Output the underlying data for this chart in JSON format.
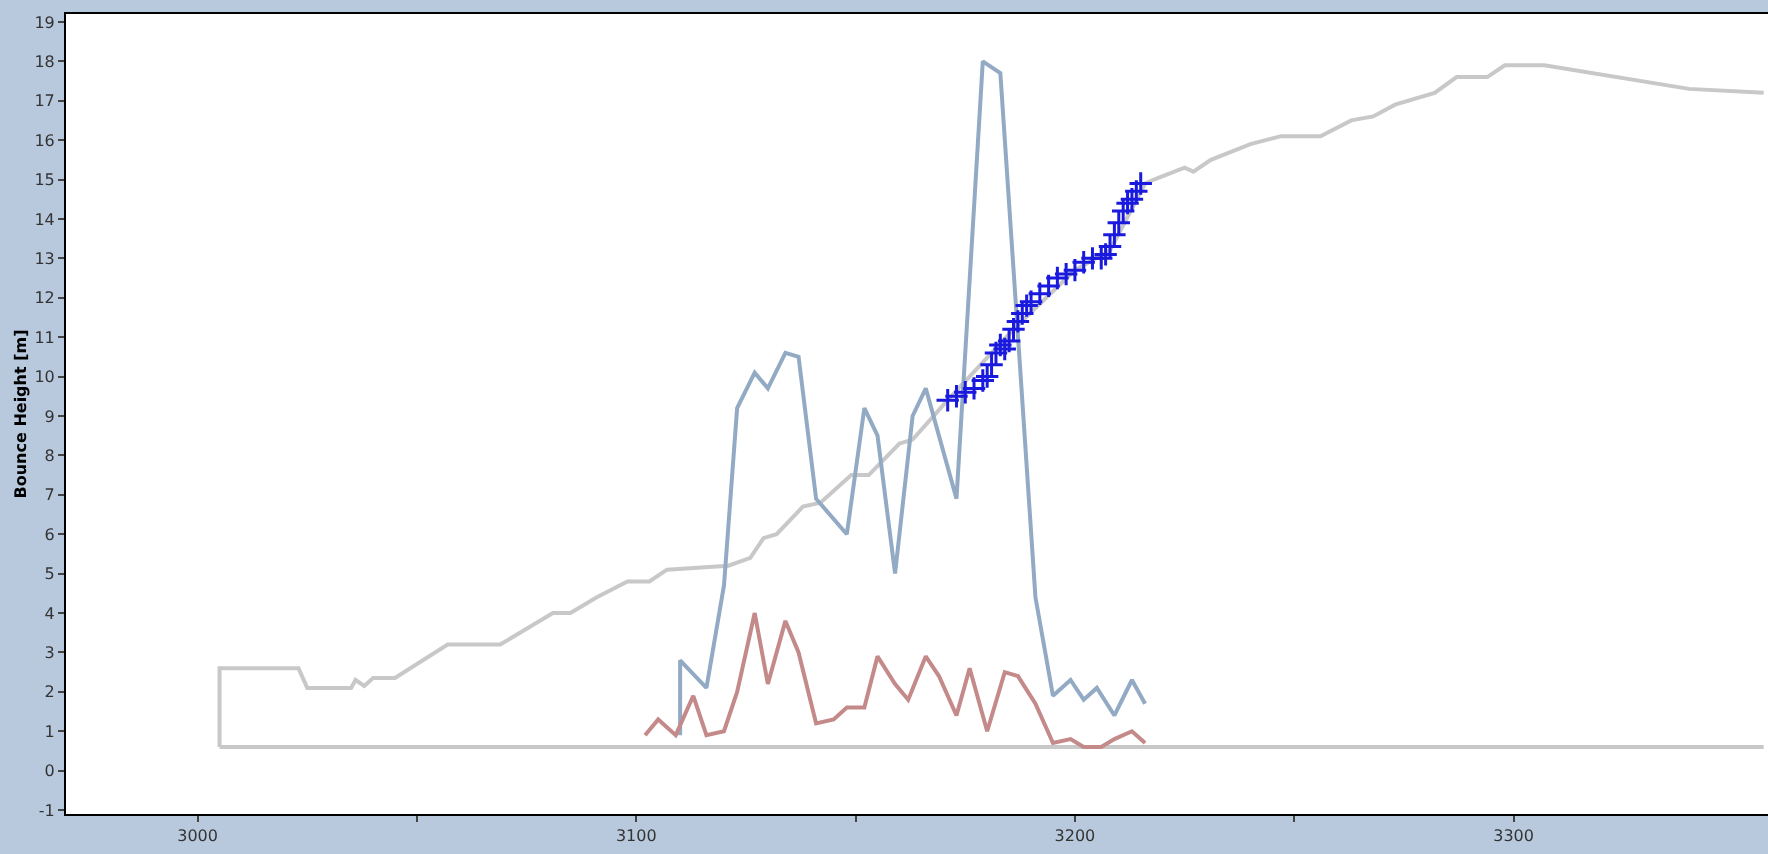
{
  "chart_data": {
    "type": "line",
    "ylabel": "Bounce Height [m]",
    "xlim": [
      2970,
      3358
    ],
    "ylim": [
      -1.1,
      19.2
    ],
    "xticks": [
      3000,
      {
        "value": 3050,
        "label": null
      },
      3100,
      {
        "value": 3150,
        "label": null
      },
      3200,
      {
        "value": 3250,
        "label": null
      },
      3300
    ],
    "yticks": [
      -1,
      0,
      1,
      2,
      3,
      4,
      5,
      6,
      7,
      8,
      9,
      10,
      11,
      12,
      13,
      14,
      15,
      16,
      17,
      18,
      19
    ],
    "series": [
      {
        "color": "#c8c8c8",
        "x": [
          3005,
          3005,
          3023,
          3025,
          3035,
          3036,
          3038,
          3040,
          3045,
          3057,
          3069,
          3081,
          3085,
          3091,
          3098,
          3103,
          3107,
          3121,
          3126,
          3129,
          3132,
          3138,
          3142,
          3149,
          3153,
          3160,
          3163,
          3171,
          3186,
          3200,
          3208,
          3216,
          3218,
          3225,
          3227,
          3231,
          3240,
          3247,
          3256,
          3263,
          3268,
          3273,
          3282,
          3287,
          3294,
          3298,
          3307,
          3340,
          3357
        ],
        "values": [
          0.6,
          2.6,
          2.6,
          2.1,
          2.1,
          2.3,
          2.15,
          2.35,
          2.35,
          3.2,
          3.2,
          4.0,
          4.0,
          4.4,
          4.8,
          4.8,
          5.1,
          5.2,
          5.4,
          5.9,
          6.0,
          6.7,
          6.8,
          7.5,
          7.5,
          8.3,
          8.4,
          9.4,
          11.2,
          12.7,
          13.2,
          14.9,
          15.0,
          15.3,
          15.2,
          15.5,
          15.9,
          16.1,
          16.1,
          16.5,
          16.6,
          16.9,
          17.2,
          17.6,
          17.6,
          17.9,
          17.9,
          17.3,
          17.2
        ]
      },
      {
        "color": "#c8c8c8",
        "x": [
          3005,
          3357
        ],
        "values": [
          0.6,
          0.6
        ]
      },
      {
        "color": "#92aac4",
        "x": [
          3110,
          3110,
          3116,
          3120,
          3123,
          3127,
          3130,
          3134,
          3137,
          3141,
          3148,
          3152,
          3155,
          3159,
          3163,
          3166,
          3173,
          3179,
          3183,
          3188,
          3191,
          3195,
          3199,
          3202,
          3205,
          3209,
          3213,
          3216
        ],
        "values": [
          0.9,
          2.8,
          2.1,
          4.7,
          9.2,
          10.1,
          9.7,
          10.6,
          10.5,
          6.9,
          6.0,
          9.2,
          8.5,
          5.0,
          9.0,
          9.7,
          6.9,
          18.0,
          17.7,
          9.4,
          4.4,
          1.9,
          2.3,
          1.8,
          2.1,
          1.4,
          2.3,
          1.7
        ]
      },
      {
        "color": "#c48a8a",
        "x": [
          3102,
          3105,
          3109,
          3113,
          3116,
          3120,
          3123,
          3127,
          3130,
          3134,
          3137,
          3141,
          3145,
          3148,
          3152,
          3155,
          3159,
          3162,
          3166,
          3169,
          3173,
          3176,
          3180,
          3184,
          3187,
          3191,
          3195,
          3199,
          3202,
          3206,
          3209,
          3213,
          3216
        ],
        "values": [
          0.9,
          1.3,
          0.9,
          1.9,
          0.9,
          1.0,
          2.0,
          4.0,
          2.2,
          3.8,
          3.0,
          1.2,
          1.3,
          1.6,
          1.6,
          2.9,
          2.2,
          1.8,
          2.9,
          2.4,
          1.4,
          2.6,
          1.0,
          2.5,
          2.4,
          1.7,
          0.7,
          0.8,
          0.6,
          0.6,
          0.8,
          1.0,
          0.7
        ]
      },
      {
        "type": "scatter",
        "color": "#1a1adf",
        "marker": "cross",
        "x": [
          3171,
          3173,
          3175,
          3177,
          3179,
          3180,
          3181,
          3182,
          3183,
          3184,
          3185,
          3186,
          3187,
          3188,
          3189,
          3190,
          3192,
          3194,
          3196,
          3198,
          3200,
          3202,
          3204,
          3206,
          3207,
          3208,
          3209,
          3210,
          3211,
          3212,
          3213,
          3214,
          3215
        ],
        "values": [
          9.4,
          9.5,
          9.6,
          9.7,
          9.9,
          10.0,
          10.3,
          10.6,
          10.8,
          10.7,
          10.9,
          11.2,
          11.4,
          11.6,
          11.8,
          11.9,
          12.1,
          12.3,
          12.5,
          12.6,
          12.7,
          12.9,
          13.0,
          13.0,
          13.1,
          13.3,
          13.6,
          13.9,
          14.2,
          14.4,
          14.5,
          14.7,
          14.9
        ]
      }
    ]
  }
}
